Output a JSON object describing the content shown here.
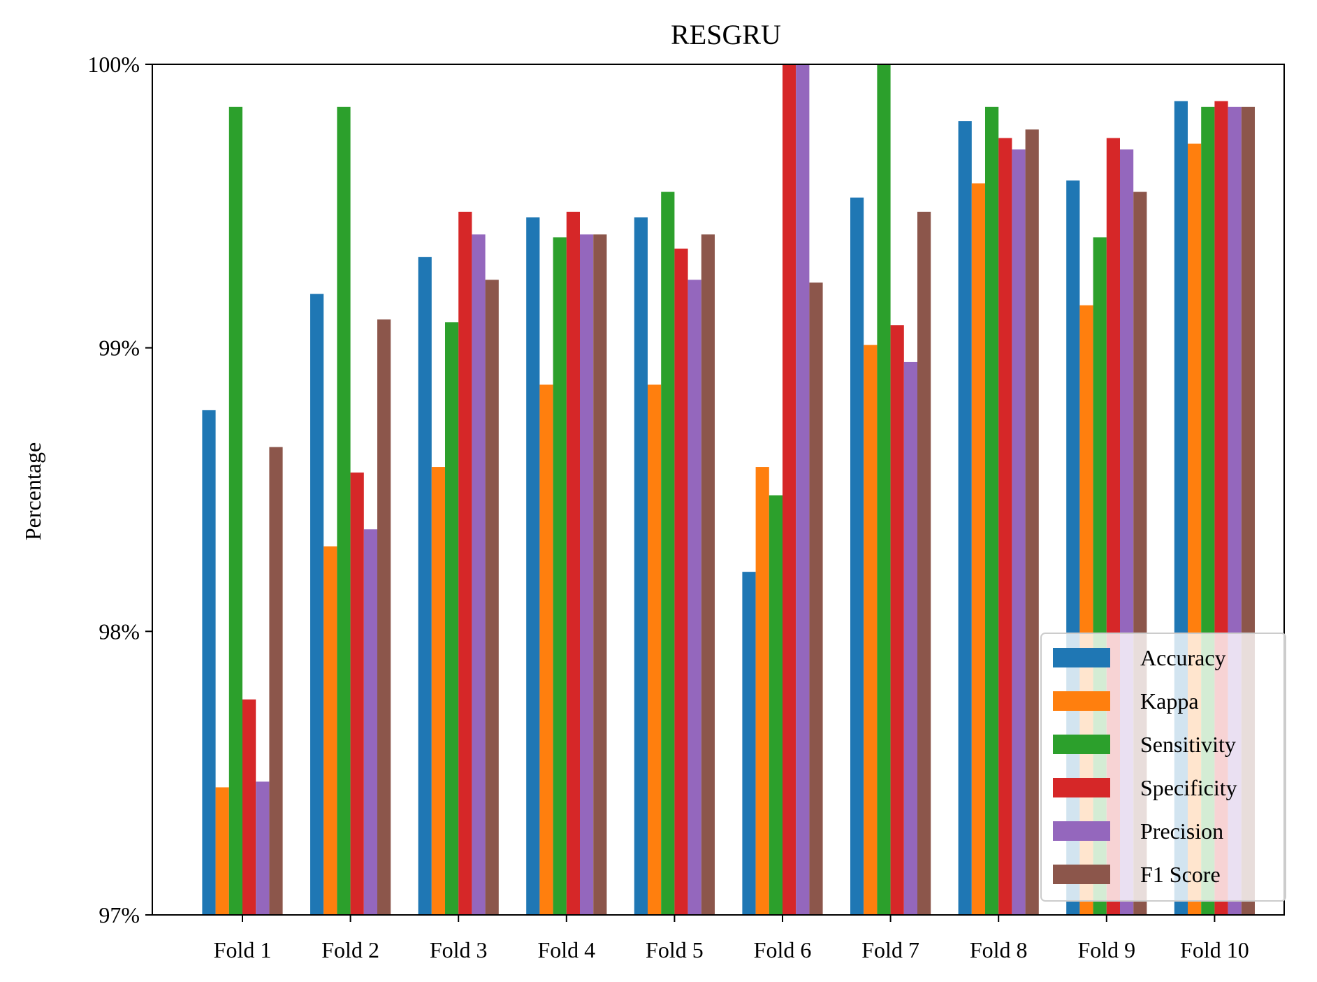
{
  "chart_data": {
    "type": "bar",
    "title": "RESGRU",
    "xlabel": "",
    "ylabel": "Percentage",
    "ylim": [
      97,
      100
    ],
    "y_scale": "linear",
    "y_ticks": [
      97,
      98,
      99,
      100
    ],
    "y_tick_labels": [
      "97%",
      "98%",
      "99%",
      "100%"
    ],
    "grid": false,
    "legend_position": "bottom-right",
    "categories": [
      "Fold 1",
      "Fold 2",
      "Fold 3",
      "Fold 4",
      "Fold 5",
      "Fold 6",
      "Fold 7",
      "Fold 8",
      "Fold 9",
      "Fold 10"
    ],
    "series": [
      {
        "name": "Accuracy",
        "color": "#1f77b4",
        "values": [
          98.78,
          99.19,
          99.32,
          99.46,
          99.46,
          98.21,
          99.53,
          99.8,
          99.59,
          99.87
        ]
      },
      {
        "name": "Kappa",
        "color": "#ff7f0e",
        "values": [
          97.45,
          98.3,
          98.58,
          98.87,
          98.87,
          98.58,
          99.01,
          99.58,
          99.15,
          99.72
        ]
      },
      {
        "name": "Sensitivity",
        "color": "#2ca02c",
        "values": [
          99.85,
          99.85,
          99.09,
          99.39,
          99.55,
          98.48,
          100.0,
          99.85,
          99.39,
          99.85
        ]
      },
      {
        "name": "Specificity",
        "color": "#d62728",
        "values": [
          97.76,
          98.56,
          99.48,
          99.48,
          99.35,
          100.0,
          99.08,
          99.74,
          99.74,
          99.87
        ]
      },
      {
        "name": "Precision",
        "color": "#9467bd",
        "values": [
          97.47,
          98.36,
          99.4,
          99.4,
          99.24,
          100.0,
          98.95,
          99.7,
          99.7,
          99.85
        ]
      },
      {
        "name": "F1 Score",
        "color": "#8c564b",
        "values": [
          98.65,
          99.1,
          99.24,
          99.4,
          99.4,
          99.23,
          99.48,
          99.77,
          99.55,
          99.85
        ]
      }
    ]
  }
}
